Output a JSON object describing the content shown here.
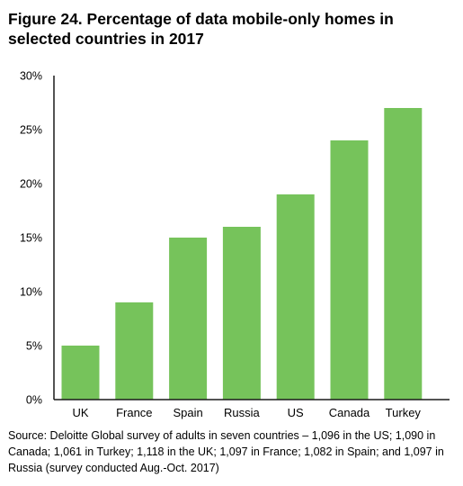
{
  "title": "Figure 24. Percentage of data mobile-only homes in selected countries in 2017",
  "source": "Source: Deloitte Global survey of adults in seven countries – 1,096 in the US; 1,090 in Canada; 1,061 in Turkey; 1,118 in the UK; 1,097 in France; 1,082 in Spain; and 1,097 in Russia (survey conducted Aug.-Oct. 2017)",
  "chart_data": {
    "type": "bar",
    "title": "Figure 24. Percentage of data mobile-only homes in selected countries in 2017",
    "xlabel": "",
    "ylabel": "",
    "categories": [
      "UK",
      "France",
      "Spain",
      "Russia",
      "US",
      "Canada",
      "Turkey"
    ],
    "values": [
      5,
      9,
      15,
      16,
      19,
      24,
      27
    ],
    "ylim": [
      0,
      30
    ],
    "yticks": [
      "0%",
      "5%",
      "10%",
      "15%",
      "20%",
      "25%",
      "30%"
    ],
    "grid": false,
    "bar_color": "#76c35b",
    "axis_color": "#1a1a1a"
  }
}
